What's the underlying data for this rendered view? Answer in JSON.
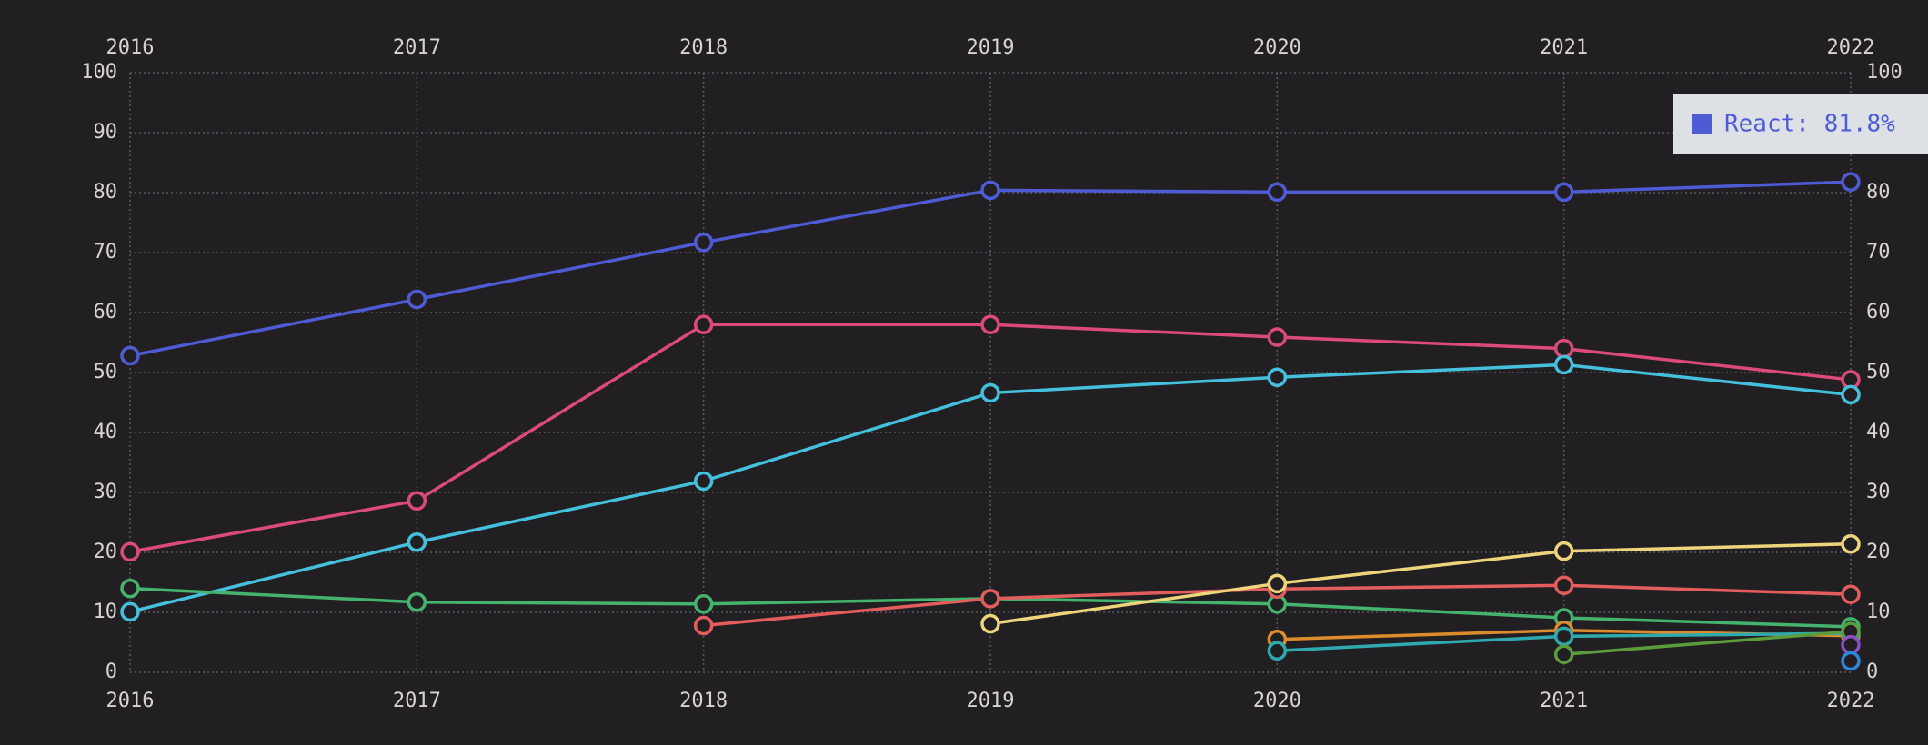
{
  "chart_data": {
    "type": "line",
    "categories": [
      "2016",
      "2017",
      "2018",
      "2019",
      "2020",
      "2021",
      "2022"
    ],
    "series": [
      {
        "name": "React",
        "color": "#4f5bd5",
        "values": [
          52.8,
          62.2,
          71.7,
          80.4,
          80.1,
          80.1,
          81.8
        ]
      },
      {
        "color": "#dc4a7c",
        "values": [
          20.1,
          28.6,
          58.0,
          58.0,
          55.9,
          54.0,
          48.8
        ]
      },
      {
        "color": "#44bfdc",
        "values": [
          10.1,
          21.7,
          31.9,
          46.6,
          49.2,
          51.3,
          46.3
        ]
      },
      {
        "color": "#45b36e",
        "values": [
          14.0,
          11.7,
          11.4,
          12.3,
          11.4,
          9.1,
          7.6
        ]
      },
      {
        "color": "#e35d5d",
        "values": [
          null,
          null,
          7.8,
          12.3,
          13.9,
          14.5,
          13.0
        ]
      },
      {
        "color": "#eed57c",
        "values": [
          null,
          null,
          null,
          8.1,
          14.8,
          20.2,
          21.4
        ]
      },
      {
        "color": "#dc8c2c",
        "values": [
          null,
          null,
          null,
          null,
          5.5,
          7.0,
          6.1
        ]
      },
      {
        "color": "#2fa9ad",
        "values": [
          null,
          null,
          null,
          null,
          3.6,
          6.0,
          6.5
        ]
      },
      {
        "color": "#5c9c3c",
        "values": [
          null,
          null,
          null,
          null,
          null,
          3.0,
          6.8
        ]
      },
      {
        "color": "#8a4fc7",
        "values": [
          null,
          null,
          null,
          null,
          null,
          null,
          4.6
        ]
      },
      {
        "color": "#2d86d8",
        "values": [
          null,
          null,
          null,
          null,
          null,
          null,
          1.9
        ]
      }
    ],
    "ylim": [
      0,
      100
    ],
    "yticks": [
      0,
      10,
      20,
      30,
      40,
      50,
      60,
      70,
      80,
      90,
      100
    ],
    "grid": true,
    "tooltip": "React: 81.8%"
  }
}
